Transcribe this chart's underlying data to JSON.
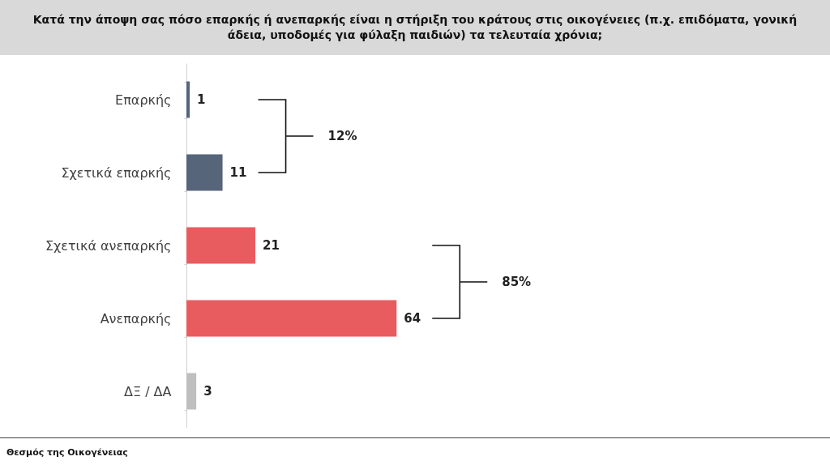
{
  "chart_data": {
    "type": "bar",
    "orientation": "horizontal",
    "title": "Κατά την άποψη σας πόσο επαρκής ή ανεπαρκής είναι η στήριξη του κράτους στις οικογένειες (π.χ. επιδόματα, γονική άδεια, υποδομές για φύλαξη παιδιών) τα τελευταία χρόνια;",
    "categories": [
      "Επαρκής",
      "Σχετικά επαρκής",
      "Σχετικά ανεπαρκής",
      "Ανεπαρκής",
      "ΔΞ / ΔΑ"
    ],
    "values": [
      1,
      11,
      21,
      64,
      3
    ],
    "colors": [
      "#56657a",
      "#56657a",
      "#e85c5f",
      "#e85c5f",
      "#bfbfbf"
    ],
    "data_labels": true,
    "annotations": [
      "12%",
      "85%",
      "Θεσμός της Οικογένειας"
    ]
  }
}
